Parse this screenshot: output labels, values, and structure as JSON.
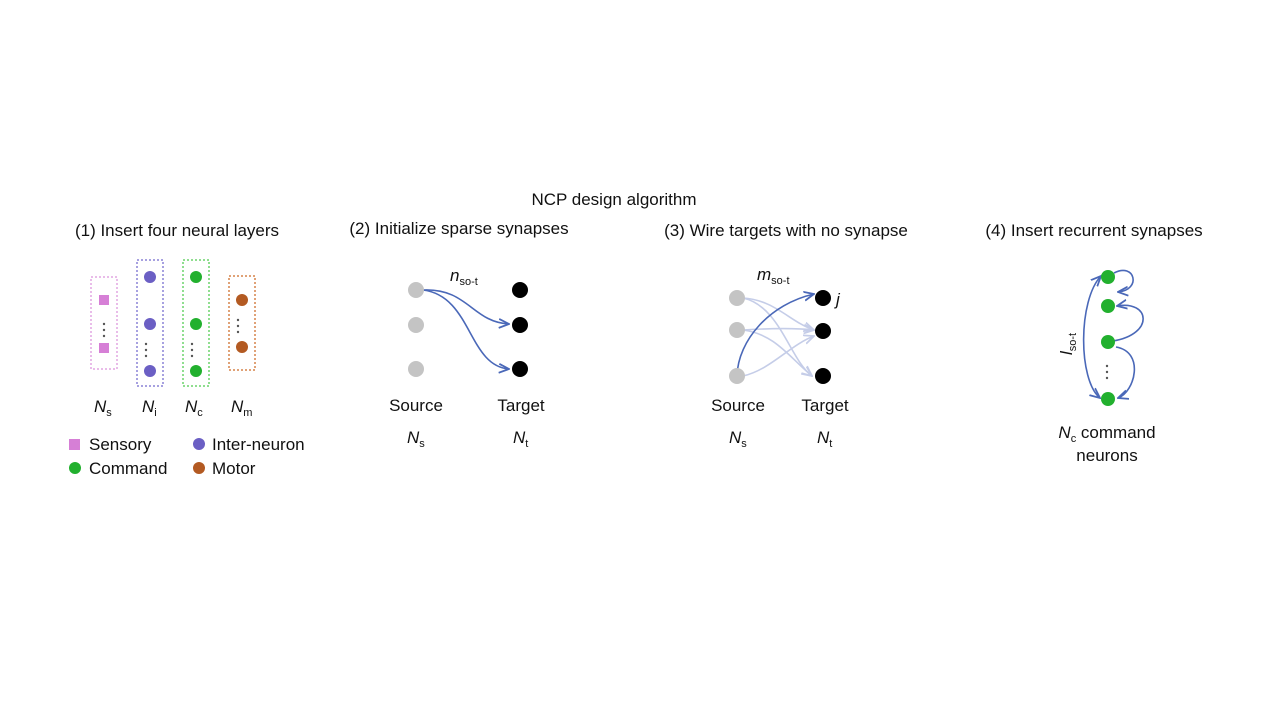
{
  "title": "NCP design algorithm",
  "panels": [
    {
      "heading": "(1) Insert four neural layers",
      "layers": [
        {
          "sym": "N",
          "sub": "s",
          "color": "#d67fd6"
        },
        {
          "sym": "N",
          "sub": "i",
          "color": "#6b5fc4"
        },
        {
          "sym": "N",
          "sub": "c",
          "color": "#22b02e"
        },
        {
          "sym": "N",
          "sub": "m",
          "color": "#b35a22"
        }
      ],
      "legend": [
        {
          "label": "Sensory",
          "color": "#d67fd6",
          "shape": "square"
        },
        {
          "label": "Inter-neuron",
          "color": "#6b5fc4",
          "shape": "circle"
        },
        {
          "label": "Command",
          "color": "#22b02e",
          "shape": "circle"
        },
        {
          "label": "Motor",
          "color": "#b35a22",
          "shape": "circle"
        }
      ]
    },
    {
      "heading": "(2) Initialize sparse synapses",
      "edge_sym": "n",
      "edge_sub": "so-t",
      "source_label": "Source",
      "target_label": "Target",
      "source_sym": "N",
      "source_sub": "s",
      "target_sym": "N",
      "target_sub": "t"
    },
    {
      "heading": "(3) Wire targets with no synapse",
      "edge_sym": "m",
      "edge_sub": "so-t",
      "node_mark": "j",
      "source_label": "Source",
      "target_label": "Target",
      "source_sym": "N",
      "source_sub": "s",
      "target_sym": "N",
      "target_sub": "t"
    },
    {
      "heading": "(4) Insert recurrent synapses",
      "edge_sym": "l",
      "edge_sub": "so-t",
      "caption_sym": "N",
      "caption_sub": "c",
      "caption_rest": " command",
      "caption_line2": "neurons"
    }
  ],
  "colors": {
    "source_node": "#c4c4c4",
    "target_node": "#000000",
    "arrow": "#4a68b8",
    "arrow_faint": "#c5cde8"
  }
}
